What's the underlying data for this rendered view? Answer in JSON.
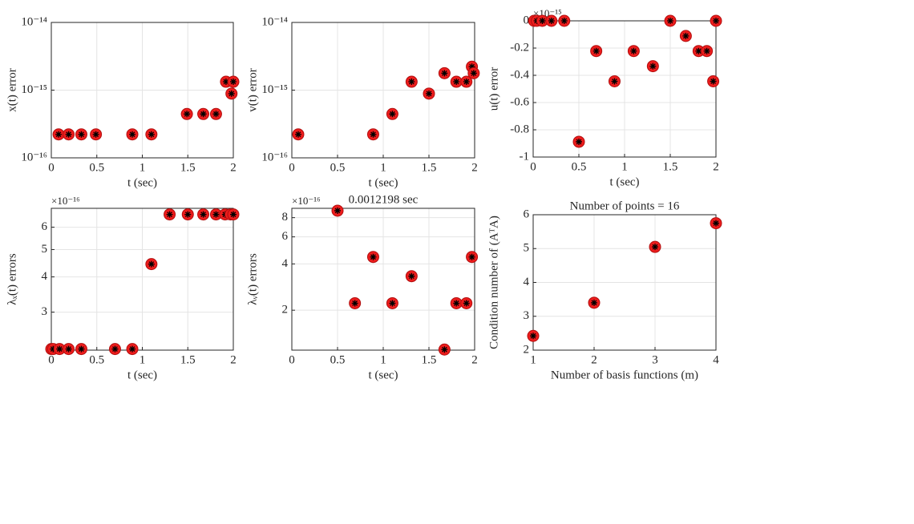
{
  "chart_data": [
    {
      "type": "scatter",
      "ylabel": "x(t) error",
      "xlabel": "t (sec)",
      "ylog": true,
      "grid": true,
      "color": "#ee1c1c",
      "xlim": [
        0,
        2
      ],
      "xticks": [
        0,
        0.5,
        1,
        1.5,
        2
      ],
      "ylim": [
        1e-16,
        1e-14
      ],
      "yticks": [
        {
          "value": 1e-16,
          "label": "10⁻¹⁶"
        },
        {
          "value": 1e-15,
          "label": "10⁻¹⁵"
        },
        {
          "value": 1e-14,
          "label": "10⁻¹⁴"
        }
      ],
      "x": [
        0.08,
        0.19,
        0.33,
        0.49,
        0.89,
        1.1,
        1.49,
        1.67,
        1.81,
        1.92,
        1.98,
        2.0
      ],
      "values": [
        2.22e-16,
        2.22e-16,
        2.22e-16,
        2.22e-16,
        2.22e-16,
        2.22e-16,
        4.44e-16,
        4.44e-16,
        4.44e-16,
        1.33e-15,
        8.88e-16,
        1.33e-15
      ]
    },
    {
      "type": "scatter",
      "ylabel": "v(t) error",
      "xlabel": "t (sec)",
      "ylog": true,
      "grid": true,
      "color": "#ee1c1c",
      "xlim": [
        0,
        2
      ],
      "xticks": [
        0,
        0.5,
        1,
        1.5,
        2
      ],
      "ylim": [
        1e-16,
        1e-14
      ],
      "yticks": [
        {
          "value": 1e-16,
          "label": "10⁻¹⁶"
        },
        {
          "value": 1e-15,
          "label": "10⁻¹⁵"
        },
        {
          "value": 1e-14,
          "label": "10⁻¹⁴"
        }
      ],
      "x": [
        0.07,
        0.89,
        1.1,
        1.31,
        1.5,
        1.67,
        1.8,
        1.91,
        1.97,
        1.99
      ],
      "values": [
        2.22e-16,
        2.22e-16,
        4.44e-16,
        1.33e-15,
        8.88e-16,
        1.78e-15,
        1.33e-15,
        1.33e-15,
        2.22e-15,
        1.78e-15
      ]
    },
    {
      "type": "scatter",
      "ylabel": "u(t) error",
      "xlabel": "t (sec)",
      "ylog": false,
      "grid": true,
      "color": "#ee1c1c",
      "multiplier": "×10⁻¹⁵",
      "xlim": [
        0,
        2
      ],
      "xticks": [
        0,
        0.5,
        1,
        1.5,
        2
      ],
      "ylim": [
        -1,
        0
      ],
      "yticks": [
        -1,
        -0.8,
        -0.6,
        -0.4,
        -0.2,
        0
      ],
      "x": [
        0.01,
        0.04,
        0.1,
        0.2,
        0.34,
        0.5,
        0.69,
        0.89,
        1.1,
        1.31,
        1.5,
        1.67,
        1.81,
        1.9,
        1.97,
        2.0
      ],
      "values": [
        0,
        0,
        0,
        0,
        0,
        -0.888,
        -0.222,
        -0.444,
        -0.222,
        -0.333,
        0,
        -0.111,
        -0.222,
        -0.222,
        -0.444,
        0
      ]
    },
    {
      "type": "scatter",
      "ylabel": "λₓ(t) errors",
      "xlabel": "t (sec)",
      "ylog": true,
      "grid": true,
      "color": "#ee1c1c",
      "multiplier": "×10⁻¹⁶",
      "xlim": [
        0,
        2
      ],
      "xticks": [
        0,
        0.5,
        1,
        1.5,
        2
      ],
      "ylim": [
        2.2,
        7
      ],
      "yticks": [
        3,
        4,
        5,
        6
      ],
      "x": [
        0.0,
        0.02,
        0.09,
        0.19,
        0.33,
        0.7,
        0.89,
        1.1,
        1.3,
        1.5,
        1.67,
        1.81,
        1.91,
        1.97,
        2.0
      ],
      "values": [
        2.22,
        2.22,
        2.22,
        2.22,
        2.22,
        2.22,
        2.22,
        4.44,
        6.66,
        6.66,
        6.66,
        6.66,
        6.66,
        6.66,
        6.66
      ]
    },
    {
      "type": "scatter",
      "title": "0.0012198 sec",
      "ylabel": "λᵥ(t) errors",
      "xlabel": "t (sec)",
      "ylog": true,
      "grid": true,
      "color": "#ee1c1c",
      "multiplier": "×10⁻¹⁶",
      "xlim": [
        0,
        2
      ],
      "xticks": [
        0,
        0.5,
        1,
        1.5,
        2
      ],
      "ylim": [
        1.1,
        9.2
      ],
      "yticks": [
        2,
        4,
        6,
        8
      ],
      "x": [
        0.5,
        0.69,
        0.89,
        1.1,
        1.31,
        1.67,
        1.8,
        1.91,
        1.97
      ],
      "values": [
        8.88,
        2.22,
        4.44,
        2.22,
        3.33,
        1.11,
        2.22,
        2.22,
        4.44
      ]
    },
    {
      "type": "scatter",
      "title": "Number of points = 16",
      "ylabel": "Condition number of (AᵀA)",
      "xlabel": "Number of basis functions (m)",
      "ylog": false,
      "grid": true,
      "color": "#ee1c1c",
      "xlim": [
        1,
        4
      ],
      "xticks": [
        1,
        2,
        3,
        4
      ],
      "ylim": [
        2,
        6
      ],
      "yticks": [
        2,
        3,
        4,
        5,
        6
      ],
      "x": [
        1,
        2,
        3,
        4
      ],
      "values": [
        2.42,
        3.4,
        5.05,
        5.75
      ]
    }
  ]
}
